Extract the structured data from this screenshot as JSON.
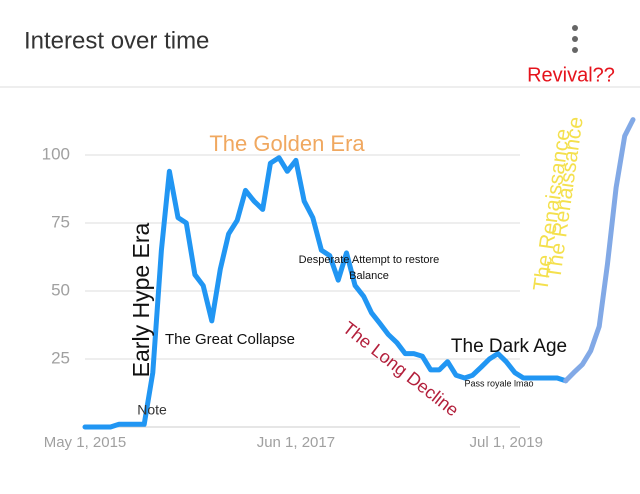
{
  "chart_data": {
    "type": "line",
    "title": "Interest over time",
    "x": [
      "2015-05-01",
      "2015-06-01",
      "2015-07-01",
      "2015-08-01",
      "2015-09-01",
      "2015-10-01",
      "2015-11-01",
      "2015-12-01",
      "2016-01-01",
      "2016-02-01",
      "2016-03-01",
      "2016-04-01",
      "2016-05-01",
      "2016-06-01",
      "2016-07-01",
      "2016-08-01",
      "2016-09-01",
      "2016-10-01",
      "2016-11-01",
      "2016-12-01",
      "2017-01-01",
      "2017-02-01",
      "2017-03-01",
      "2017-04-01",
      "2017-05-01",
      "2017-06-01",
      "2017-07-01",
      "2017-08-01",
      "2017-09-01",
      "2017-10-01",
      "2017-11-01",
      "2017-12-01",
      "2018-01-01",
      "2018-02-01",
      "2018-03-01",
      "2018-04-01",
      "2018-05-01",
      "2018-06-01",
      "2018-07-01",
      "2018-08-01",
      "2018-09-01",
      "2018-10-01",
      "2018-11-01",
      "2018-12-01",
      "2019-01-01",
      "2019-02-01",
      "2019-03-01",
      "2019-04-01",
      "2019-05-01",
      "2019-06-01",
      "2019-07-01",
      "2019-08-01",
      "2019-09-01",
      "2019-10-01",
      "2019-11-01",
      "2019-12-01",
      "2020-01-01",
      "2020-02-01",
      "2020-03-01",
      "2020-04-01",
      "2020-05-01",
      "2020-06-01",
      "2020-07-01",
      "2020-08-01",
      "2020-09-01",
      "2020-10-01"
    ],
    "series": [
      {
        "color": "#2196f3",
        "values": [
          0,
          0,
          0,
          0,
          1,
          1,
          1,
          1,
          20,
          65,
          94,
          77,
          75,
          56,
          52,
          39,
          58,
          71,
          76,
          87,
          83,
          80,
          97,
          99,
          94,
          98,
          83,
          77,
          65,
          63,
          54,
          64,
          52,
          48,
          42,
          38,
          34,
          31,
          27,
          27,
          26,
          21,
          21,
          24,
          19,
          18,
          19,
          22,
          25,
          27,
          24,
          20,
          18,
          18,
          18,
          18,
          18,
          17,
          null,
          null,
          null,
          null,
          null,
          null,
          null,
          null
        ]
      },
      {
        "color": "#82a9e6",
        "values": [
          null,
          null,
          null,
          null,
          null,
          null,
          null,
          null,
          null,
          null,
          null,
          null,
          null,
          null,
          null,
          null,
          null,
          null,
          null,
          null,
          null,
          null,
          null,
          null,
          null,
          null,
          null,
          null,
          null,
          null,
          null,
          null,
          null,
          null,
          null,
          null,
          null,
          null,
          null,
          null,
          null,
          null,
          null,
          null,
          null,
          null,
          null,
          null,
          null,
          null,
          null,
          null,
          null,
          null,
          null,
          null,
          null,
          17,
          20,
          23,
          28,
          37,
          60,
          88,
          107,
          113
        ]
      }
    ],
    "xlim": [
      "2015-05-01",
      "2020-10-01"
    ],
    "xticks": [
      {
        "value": "2015-05-01",
        "label": "May 1, 2015"
      },
      {
        "value": "2017-06-01",
        "label": "Jun 1, 2017"
      },
      {
        "value": "2019-07-01",
        "label": "Jul 1, 2019"
      }
    ],
    "ylim": [
      0,
      100
    ],
    "yticks": [
      25,
      50,
      75,
      100
    ],
    "grid": true,
    "annotations": [
      "Revival??",
      "The Renaissance",
      "The Renaissance",
      "The Golden Era",
      "Early Hype Era",
      "The Great Collapse",
      "Desperate Attempt to restore",
      "Balance",
      "The Long Decline",
      "The Dark Age",
      "Pass royale lmao",
      "Note"
    ]
  }
}
